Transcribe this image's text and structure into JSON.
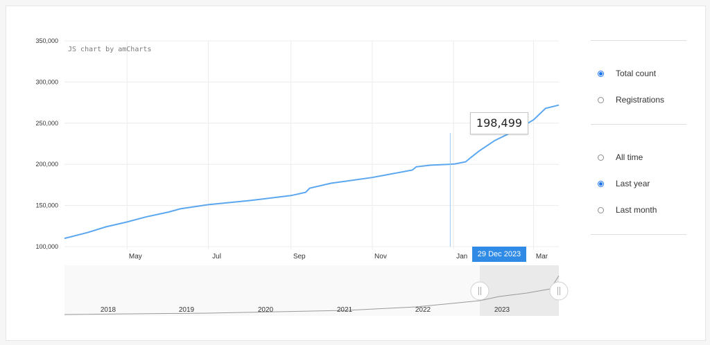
{
  "credit": "JS chart by amCharts",
  "tooltip": {
    "value": "198,499"
  },
  "cursor": {
    "label": "29 Dec 2023"
  },
  "metric_options": [
    {
      "label": "Total count",
      "checked": true
    },
    {
      "label": "Registrations",
      "checked": false
    }
  ],
  "range_options": [
    {
      "label": "All time",
      "checked": false
    },
    {
      "label": "Last year",
      "checked": true
    },
    {
      "label": "Last month",
      "checked": false
    }
  ],
  "colors": {
    "series": "#5aa7f0",
    "accent": "#1a73e8",
    "cursor_label": "#2f8be6"
  },
  "chart_data": {
    "type": "line",
    "title": "",
    "xlabel": "",
    "ylabel": "",
    "y_ticks": [
      "100,000",
      "150,000",
      "200,000",
      "250,000",
      "300,000",
      "350,000"
    ],
    "ylim": [
      100000,
      350000
    ],
    "x_ticks": [
      "May",
      "Jul",
      "Sep",
      "Nov",
      "Jan",
      "Mar"
    ],
    "grid": true,
    "series": [
      {
        "x": [
          "2023-03-15",
          "2023-04-01",
          "2023-04-15",
          "2023-05-01",
          "2023-05-15",
          "2023-06-01",
          "2023-06-10",
          "2023-07-01",
          "2023-08-01",
          "2023-09-01",
          "2023-09-12",
          "2023-09-15",
          "2023-10-01",
          "2023-11-01",
          "2023-12-01",
          "2023-12-04",
          "2023-12-15",
          "2023-12-28",
          "2024-01-02",
          "2024-01-10",
          "2024-01-13",
          "2024-01-20",
          "2024-02-01",
          "2024-02-15",
          "2024-03-01",
          "2024-03-10",
          "2024-03-20"
        ],
        "values": [
          110000,
          117000,
          124000,
          130000,
          136000,
          142000,
          146000,
          151000,
          156000,
          162000,
          166000,
          171000,
          177000,
          184000,
          193000,
          197000,
          199000,
          200000,
          200500,
          203000,
          207000,
          216000,
          229000,
          240000,
          254000,
          268000,
          272000
        ]
      }
    ],
    "navigator": {
      "year_labels": [
        "2018",
        "2019",
        "2020",
        "2021",
        "2022",
        "2023"
      ],
      "selected_range": [
        "2023-03-15",
        "2024-03-20"
      ]
    }
  }
}
